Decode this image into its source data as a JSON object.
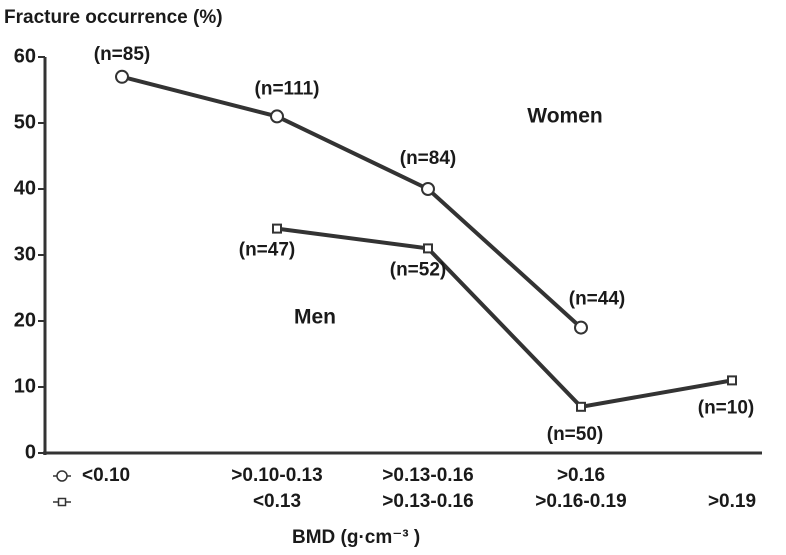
{
  "chart_data": {
    "type": "line",
    "y_label": "Fracture occurrence (%)",
    "x_label": "BMD (g·cm⁻³ )",
    "ylim": [
      0,
      60
    ],
    "yticks": [
      0,
      10,
      20,
      30,
      40,
      50,
      60
    ],
    "series": [
      {
        "name": "Women",
        "marker": "circle",
        "color": "#333333",
        "categories": [
          "<0.10",
          ">0.10-0.13",
          ">0.13-0.16",
          ">0.16",
          null
        ],
        "values": [
          57,
          51,
          40,
          19,
          null
        ],
        "n_labels": [
          "(n=85)",
          "(n=111)",
          "(n=84)",
          "(n=44)",
          null
        ]
      },
      {
        "name": "Men",
        "marker": "square",
        "color": "#333333",
        "categories": [
          null,
          "<0.13",
          ">0.13-0.16",
          ">0.16-0.19",
          ">0.19"
        ],
        "values": [
          null,
          34,
          31,
          7,
          11
        ],
        "n_labels": [
          null,
          "(n=47)",
          "(n=52)",
          "(n=50)",
          "(n=10)"
        ]
      }
    ]
  }
}
